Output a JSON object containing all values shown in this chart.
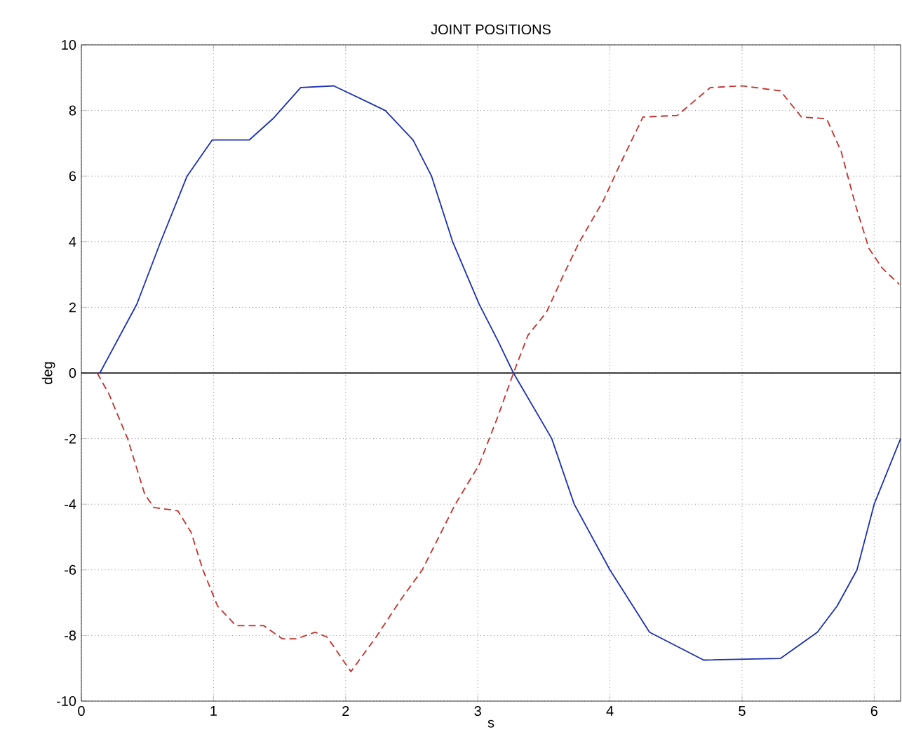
{
  "chart_data": {
    "type": "line",
    "title": "JOINT POSITIONS",
    "xlabel": "s",
    "ylabel": "deg",
    "xlim": [
      0,
      6.2
    ],
    "ylim": [
      -10,
      10
    ],
    "xticks": [
      0,
      1,
      2,
      3,
      4,
      5,
      6
    ],
    "yticks": [
      -10,
      -8,
      -6,
      -4,
      -2,
      0,
      2,
      4,
      6,
      8,
      10
    ],
    "grid": true,
    "ref_lines": [
      {
        "axis": "y",
        "value": 0,
        "color": "#000000",
        "line_style": "solid"
      }
    ],
    "series": [
      {
        "color": "#1a2fb0",
        "line_style": "solid",
        "x": [
          0.14,
          0.42,
          0.6,
          0.8,
          0.99,
          1.27,
          1.45,
          1.66,
          1.91,
          2.3,
          2.51,
          2.65,
          2.81,
          3.01,
          3.15,
          3.27,
          3.56,
          3.73,
          4.0,
          4.3,
          4.71,
          5.29,
          5.57,
          5.72,
          5.87,
          6.0,
          6.2
        ],
        "values": [
          0,
          2.1,
          4.0,
          6.0,
          7.1,
          7.1,
          7.75,
          8.7,
          8.75,
          8.0,
          7.1,
          6.0,
          4.0,
          2.1,
          1.0,
          0,
          -2.0,
          -4.0,
          -6.0,
          -7.9,
          -8.75,
          -8.7,
          -7.9,
          -7.1,
          -6.0,
          -4.0,
          -2.0
        ]
      },
      {
        "color": "#c4302b",
        "line_style": "dashed",
        "x": [
          0.12,
          0.21,
          0.35,
          0.48,
          0.55,
          0.73,
          0.83,
          0.92,
          1.03,
          1.17,
          1.38,
          1.52,
          1.63,
          1.77,
          1.86,
          2.04,
          2.23,
          2.41,
          2.58,
          2.83,
          3.01,
          3.15,
          3.27,
          3.38,
          3.52,
          3.65,
          3.77,
          3.95,
          4.07,
          4.25,
          4.51,
          4.76,
          5.0,
          5.29,
          5.45,
          5.64,
          5.75,
          5.86,
          5.96,
          6.06,
          6.19
        ],
        "values": [
          0,
          -0.65,
          -2.0,
          -3.7,
          -4.1,
          -4.2,
          -4.85,
          -6.0,
          -7.1,
          -7.7,
          -7.7,
          -8.1,
          -8.1,
          -7.9,
          -8.05,
          -9.1,
          -8.05,
          -6.95,
          -6.0,
          -4.0,
          -2.8,
          -1.35,
          0,
          1.15,
          1.85,
          3.0,
          4.0,
          5.25,
          6.3,
          7.8,
          7.85,
          8.7,
          8.75,
          8.6,
          7.8,
          7.75,
          6.75,
          5.1,
          3.8,
          3.2,
          2.7
        ]
      }
    ]
  }
}
